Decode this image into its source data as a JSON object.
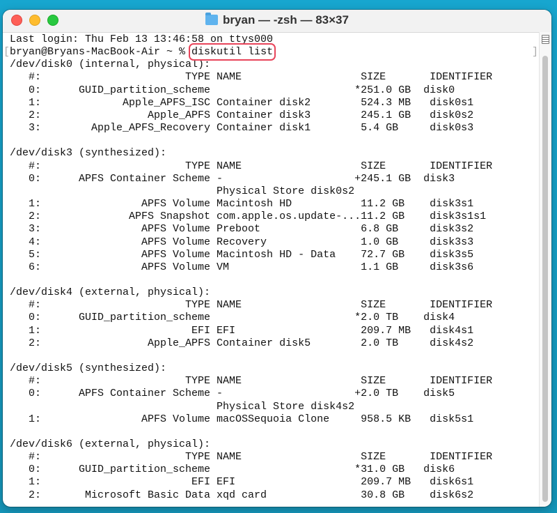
{
  "window": {
    "title": "bryan — -zsh — 83×37",
    "title_icon": "folder-icon"
  },
  "terminal": {
    "last_login": "Last login: Thu Feb 13 13:46:58 on ttys000",
    "prompt": "bryan@Bryans-MacBook-Air ~ % ",
    "command": "diskutil list",
    "highlight_color": "#e8445a",
    "header": {
      "num": "#:",
      "type": "TYPE",
      "name": "NAME",
      "size": "SIZE",
      "identifier": "IDENTIFIER"
    },
    "disks": [
      {
        "title": "/dev/disk0 (internal, physical):",
        "rows": [
          {
            "num": "0:",
            "type": "GUID_partition_scheme",
            "name": "",
            "size": "*251.0 GB",
            "identifier": "disk0"
          },
          {
            "num": "1:",
            "type": "Apple_APFS_ISC",
            "name": "Container disk2",
            "size": "524.3 MB",
            "identifier": "disk0s1"
          },
          {
            "num": "2:",
            "type": "Apple_APFS",
            "name": "Container disk3",
            "size": "245.1 GB",
            "identifier": "disk0s2"
          },
          {
            "num": "3:",
            "type": "Apple_APFS_Recovery",
            "name": "Container disk1",
            "size": "5.4 GB",
            "identifier": "disk0s3"
          }
        ]
      },
      {
        "title": "/dev/disk3 (synthesized):",
        "rows": [
          {
            "num": "0:",
            "type": "APFS Container Scheme",
            "name": "-",
            "size": "+245.1 GB",
            "identifier": "disk3"
          },
          {
            "num": "",
            "type": "",
            "name": "Physical Store disk0s2",
            "size": "",
            "identifier": ""
          },
          {
            "num": "1:",
            "type": "APFS Volume",
            "name": "Macintosh HD",
            "size": "11.2 GB",
            "identifier": "disk3s1"
          },
          {
            "num": "2:",
            "type": "APFS Snapshot",
            "name": "com.apple.os.update-...",
            "size": "11.2 GB",
            "identifier": "disk3s1s1"
          },
          {
            "num": "3:",
            "type": "APFS Volume",
            "name": "Preboot",
            "size": "6.8 GB",
            "identifier": "disk3s2"
          },
          {
            "num": "4:",
            "type": "APFS Volume",
            "name": "Recovery",
            "size": "1.0 GB",
            "identifier": "disk3s3"
          },
          {
            "num": "5:",
            "type": "APFS Volume",
            "name": "Macintosh HD - Data",
            "size": "72.7 GB",
            "identifier": "disk3s5"
          },
          {
            "num": "6:",
            "type": "APFS Volume",
            "name": "VM",
            "size": "1.1 GB",
            "identifier": "disk3s6"
          }
        ]
      },
      {
        "title": "/dev/disk4 (external, physical):",
        "rows": [
          {
            "num": "0:",
            "type": "GUID_partition_scheme",
            "name": "",
            "size": "*2.0 TB",
            "identifier": "disk4"
          },
          {
            "num": "1:",
            "type": "EFI",
            "name": "EFI",
            "size": "209.7 MB",
            "identifier": "disk4s1"
          },
          {
            "num": "2:",
            "type": "Apple_APFS",
            "name": "Container disk5",
            "size": "2.0 TB",
            "identifier": "disk4s2"
          }
        ]
      },
      {
        "title": "/dev/disk5 (synthesized):",
        "rows": [
          {
            "num": "0:",
            "type": "APFS Container Scheme",
            "name": "-",
            "size": "+2.0 TB",
            "identifier": "disk5"
          },
          {
            "num": "",
            "type": "",
            "name": "Physical Store disk4s2",
            "size": "",
            "identifier": ""
          },
          {
            "num": "1:",
            "type": "APFS Volume",
            "name": "macOSSequoia Clone",
            "size": "958.5 KB",
            "identifier": "disk5s1"
          }
        ]
      },
      {
        "title": "/dev/disk6 (external, physical):",
        "rows": [
          {
            "num": "0:",
            "type": "GUID_partition_scheme",
            "name": "",
            "size": "*31.0 GB",
            "identifier": "disk6"
          },
          {
            "num": "1:",
            "type": "EFI",
            "name": "EFI",
            "size": "209.7 MB",
            "identifier": "disk6s1"
          },
          {
            "num": "2:",
            "type": "Microsoft Basic Data",
            "name": "xqd card",
            "size": "30.8 GB",
            "identifier": "disk6s2"
          }
        ]
      }
    ]
  }
}
